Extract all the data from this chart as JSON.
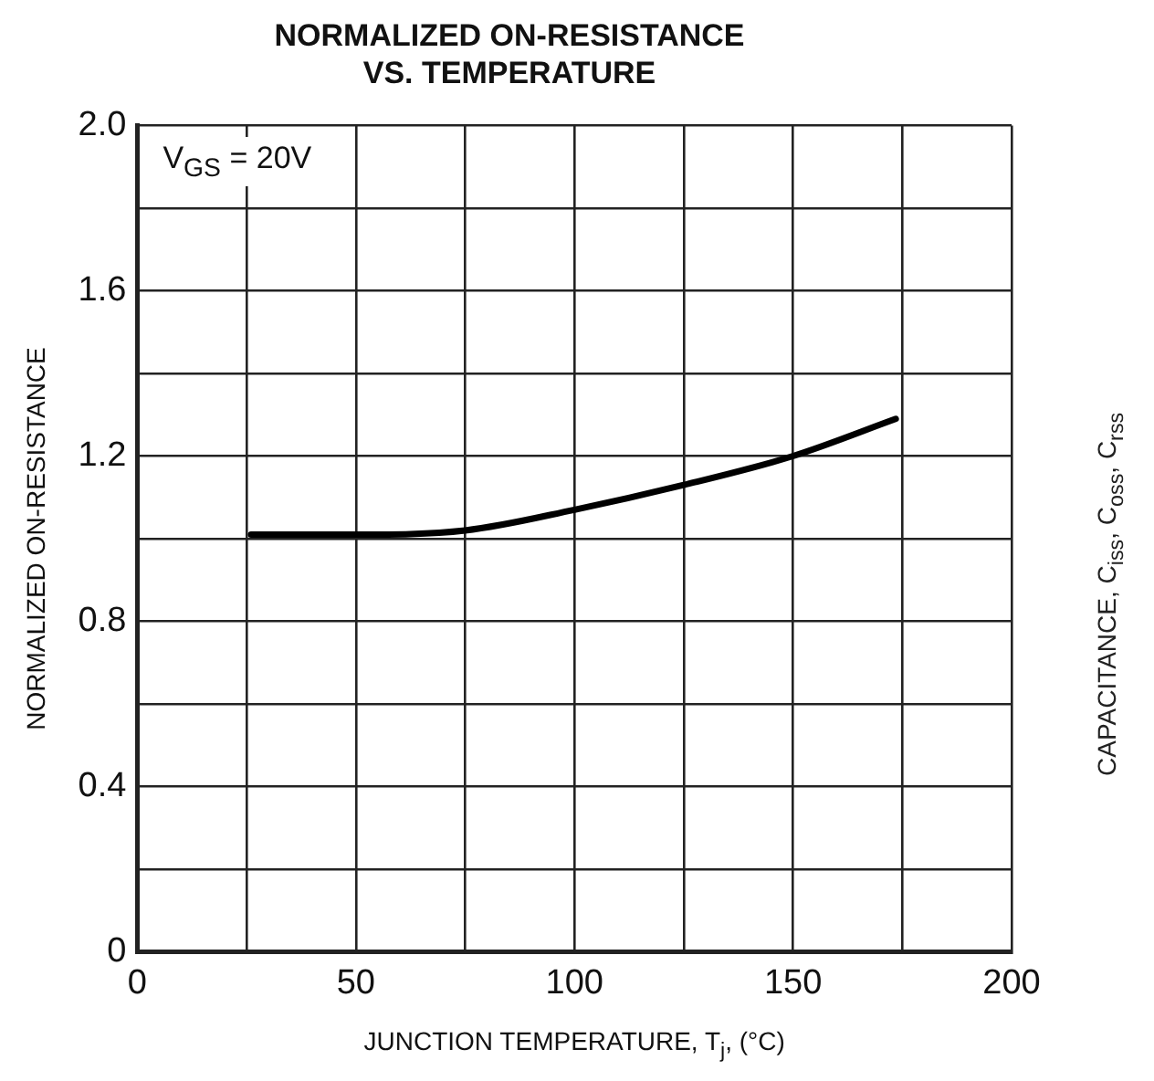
{
  "chart_data": {
    "type": "line",
    "title": "NORMALIZED ON-RESISTANCE\nVS. TEMPERATURE",
    "xlabel": "JUNCTION TEMPERATURE, T$_{j}$, (°C)",
    "ylabel": "NORMALIZED ON-RESISTANCE",
    "x": [
      26,
      50,
      75,
      100,
      125,
      150,
      173.5
    ],
    "series": [
      {
        "color": "#000000",
        "values": [
          1.01,
          1.01,
          1.02,
          1.07,
          1.13,
          1.2,
          1.29
        ]
      }
    ],
    "xlim": [
      0,
      200
    ],
    "xticks": [
      0,
      {
        "value": 25,
        "label": null
      },
      50,
      {
        "value": 75,
        "label": null
      },
      100,
      {
        "value": 125,
        "label": null
      },
      150,
      {
        "value": 175,
        "label": null
      },
      200
    ],
    "ylim": [
      0,
      2
    ],
    "yticks": [
      0,
      {
        "value": 0.2,
        "label": null
      },
      0.4,
      {
        "value": 0.6,
        "label": null
      },
      0.8,
      {
        "value": 1.0,
        "label": null
      },
      1.2,
      {
        "value": 1.4,
        "label": null
      },
      1.6,
      {
        "value": 1.8,
        "label": null
      },
      {
        "value": 2,
        "label": "2.0"
      }
    ],
    "grid": true,
    "legend": false,
    "marker": "none",
    "line_style": "solid",
    "annotations": [
      "V$_{GS}$ = 20V",
      "CAPACITANCE, C$_{iss}$, C$_{oss}$, C$_{rss}$"
    ]
  }
}
